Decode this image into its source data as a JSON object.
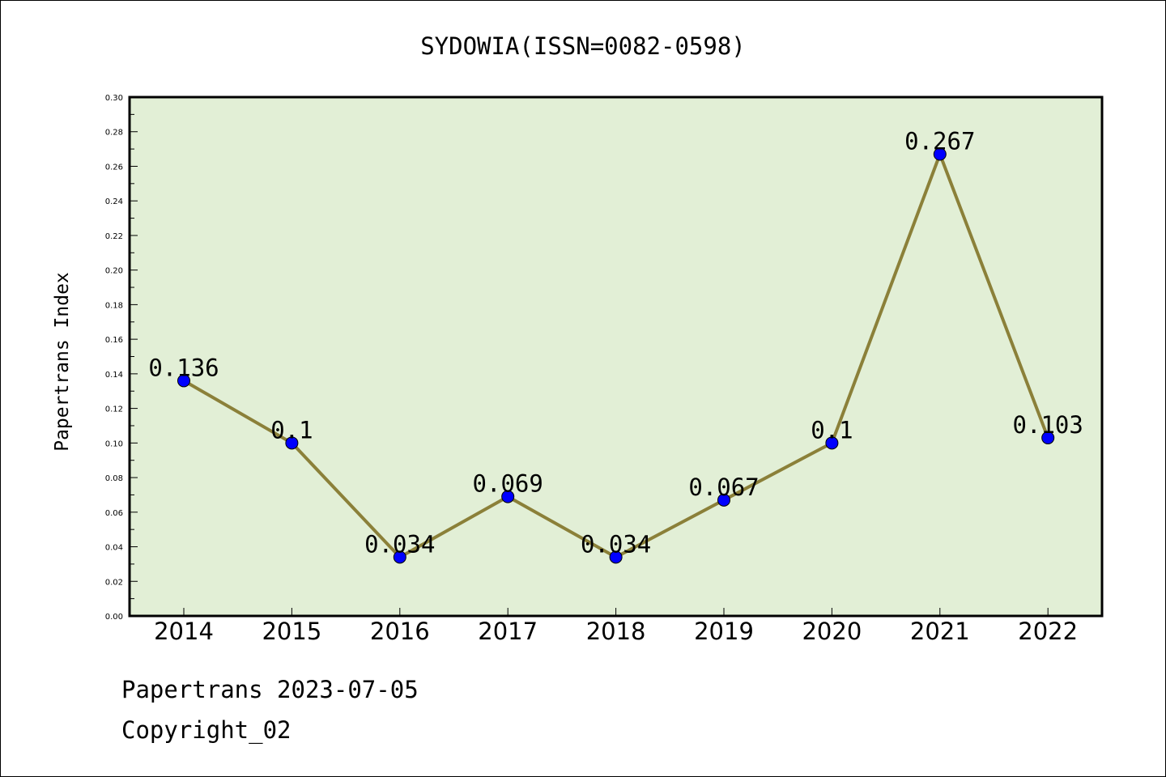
{
  "chart_data": {
    "type": "line",
    "title": "SYDOWIA(ISSN=0082-0598)",
    "ylabel": "Papertrans Index",
    "xlabel": "",
    "categories": [
      "2014",
      "2015",
      "2016",
      "2017",
      "2018",
      "2019",
      "2020",
      "2021",
      "2022"
    ],
    "values": [
      0.136,
      0.1,
      0.034,
      0.069,
      0.034,
      0.067,
      0.1,
      0.267,
      0.103
    ],
    "data_labels": [
      "0.136",
      "0.1",
      "0.034",
      "0.069",
      "0.034",
      "0.067",
      "0.1",
      "0.267",
      "0.103"
    ],
    "ylim": [
      0,
      0.3
    ],
    "yticks": [
      "0.00",
      "0.02",
      "0.04",
      "0.06",
      "0.08",
      "0.10",
      "0.12",
      "0.14",
      "0.16",
      "0.18",
      "0.20",
      "0.22",
      "0.24",
      "0.26",
      "0.28",
      "0.30"
    ],
    "grid": false,
    "colors": {
      "plot_background": "#e2efd6",
      "line": "#8b8039",
      "marker": "#0000ff"
    }
  },
  "footer": {
    "line1": "Papertrans 2023-07-05",
    "line2": "Copyright_02"
  }
}
